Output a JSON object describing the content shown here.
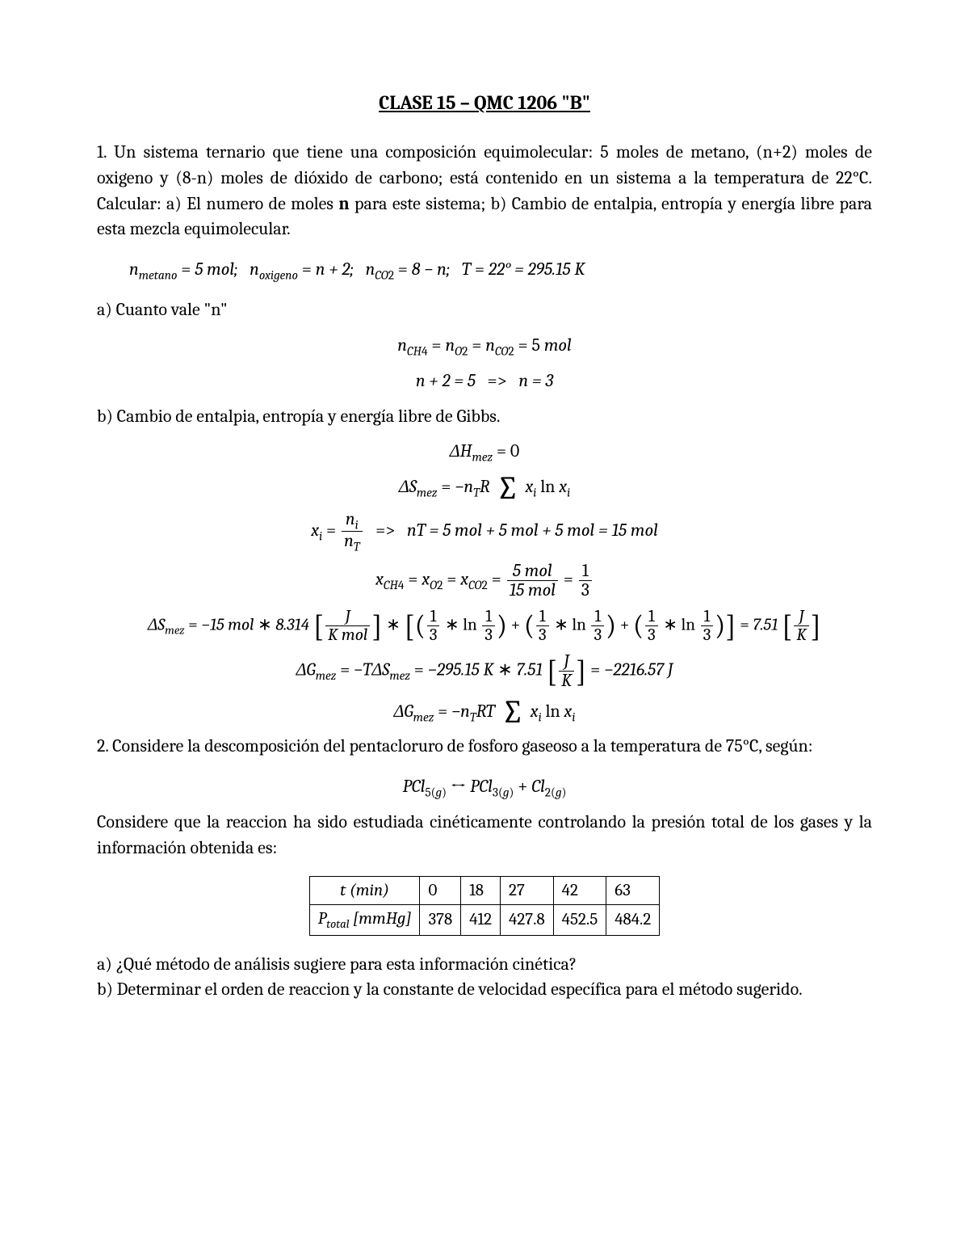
{
  "title": "CLASE 15 – QMC 1206 \"B\"",
  "problem1": {
    "text": "1. Un sistema ternario que tiene una composición equimolecular: 5 moles de metano, (n+2) moles de oxigeno y (8-n) moles de dióxido de carbono; está contenido en un sistema a la temperatura de 22°C. Calcular: a) El numero de moles n para este sistema; b) Cambio de entalpia, entropía y energía libre para esta mezcla equimolecular.",
    "given": {
      "n_metano": "5 mol",
      "n_oxigeno": "n + 2",
      "n_CO2": "8 − n",
      "T": "22° = 295.15 K"
    },
    "part_a_label": "a) Cuanto vale \"n\"",
    "part_a_eq1": "nCH4 = nO2 = nCO2 = 5 mol",
    "part_a_eq2_lhs": "n + 2 = 5",
    "part_a_eq2_rhs": "n = 3",
    "part_b_label": "b) Cambio de entalpia, entropía y energía libre de Gibbs.",
    "dH": "ΔHmez = 0",
    "xi_def_num": "ni",
    "xi_def_den": "nT",
    "nT_calc": "nT = 5 mol + 5 mol + 5 mol = 15 mol",
    "x_frac_num": "5 mol",
    "x_frac_den": "15 mol",
    "dS_value": "7.51",
    "R_value": "8.314",
    "nT_value": "−15 mol",
    "T_value": "−295.15 K",
    "dG_value": "−2216.57 J"
  },
  "problem2": {
    "text": "2. Considere la descomposición del pentacloruro de fosforo gaseoso a la temperatura de 75°C, según:",
    "rxn": "PCl5(g) ↔ PCl3(g) + Cl2(g)",
    "text2": "Considere que la reaccion ha sido estudiada cinéticamente controlando la presión total de los gases y la información obtenida es:",
    "table": {
      "row1_label": "t (min)",
      "row2_label": "Ptotal [mmHg]",
      "t": [
        "0",
        "18",
        "27",
        "42",
        "63"
      ],
      "P": [
        "378",
        "412",
        "427.8",
        "452.5",
        "484.2"
      ]
    },
    "q_a": "a) ¿Qué método de análisis sugiere para esta información cinética?",
    "q_b": "b) Determinar el orden de reaccion y la constante de velocidad específica para el método sugerido."
  }
}
